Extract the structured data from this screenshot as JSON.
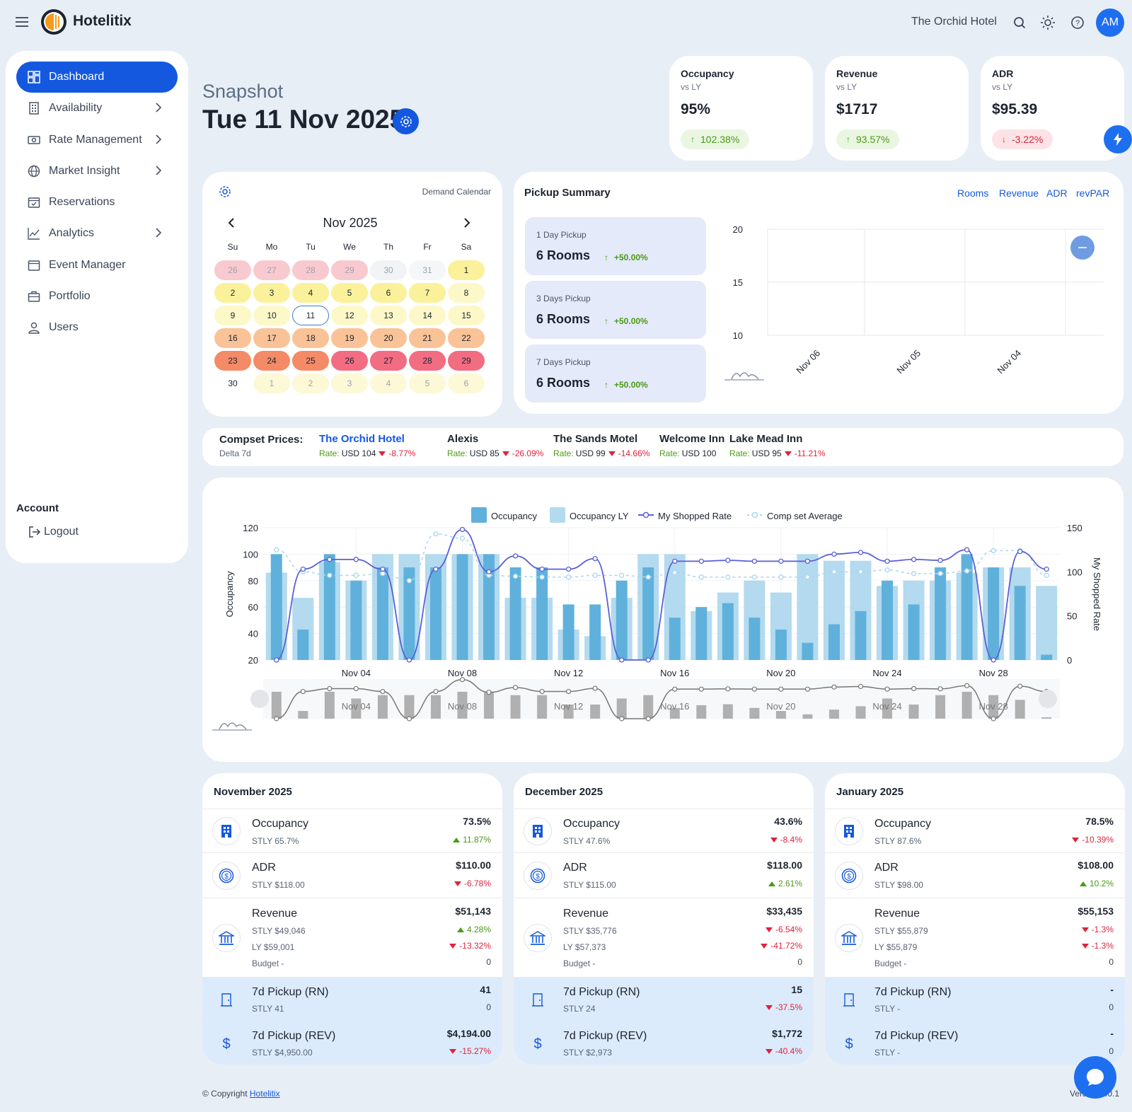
{
  "app": {
    "name": "Hotelitix",
    "hotel": "The Orchid Hotel",
    "avatar": "AM"
  },
  "sidebar": {
    "items": [
      {
        "label": "Dashboard",
        "icon": "dashboard-icon",
        "active": true
      },
      {
        "label": "Availability",
        "icon": "building-icon",
        "chevron": true
      },
      {
        "label": "Rate Management",
        "icon": "money-icon",
        "chevron": true
      },
      {
        "label": "Market Insight",
        "icon": "globe-icon",
        "chevron": true
      },
      {
        "label": "Reservations",
        "icon": "calendar-check-icon"
      },
      {
        "label": "Analytics",
        "icon": "chart-line-icon",
        "chevron": true
      },
      {
        "label": "Event Manager",
        "icon": "calendar-icon"
      },
      {
        "label": "Portfolio",
        "icon": "briefcase-icon"
      },
      {
        "label": "Users",
        "icon": "user-icon"
      }
    ],
    "account_label": "Account",
    "logout_label": "Logout"
  },
  "header": {
    "snapshot": "Snapshot",
    "date": "Tue 11 Nov 2025"
  },
  "kpis": [
    {
      "title": "Occupancy",
      "sub": "vs LY",
      "value": "95%",
      "change": "102.38%",
      "dir": "up"
    },
    {
      "title": "Revenue",
      "sub": "vs LY",
      "value": "$1717",
      "change": "93.57%",
      "dir": "up"
    },
    {
      "title": "ADR",
      "sub": "vs LY",
      "value": "$95.39",
      "change": "-3.22%",
      "dir": "down"
    }
  ],
  "calendar": {
    "label": "Demand Calendar",
    "month": "Nov 2025",
    "weekdays": [
      "Su",
      "Mo",
      "Tu",
      "We",
      "Th",
      "Fr",
      "Sa"
    ],
    "today": "11",
    "days": [
      {
        "d": "26",
        "c": "#f9c9d0",
        "m": true
      },
      {
        "d": "27",
        "c": "#f9c9d0",
        "m": true
      },
      {
        "d": "28",
        "c": "#f9c9d0",
        "m": true
      },
      {
        "d": "29",
        "c": "#f9c9d0",
        "m": true
      },
      {
        "d": "30",
        "c": "#f1f3f6",
        "m": true
      },
      {
        "d": "31",
        "c": "#f5f6f8",
        "m": true
      },
      {
        "d": "1",
        "c": "#fbf19a"
      },
      {
        "d": "2",
        "c": "#fbf19a"
      },
      {
        "d": "3",
        "c": "#fbf19a"
      },
      {
        "d": "4",
        "c": "#fbf19a"
      },
      {
        "d": "5",
        "c": "#fbf19a"
      },
      {
        "d": "6",
        "c": "#fbf19a"
      },
      {
        "d": "7",
        "c": "#fbf19a"
      },
      {
        "d": "8",
        "c": "#fdf8c8"
      },
      {
        "d": "9",
        "c": "#fdf8c8"
      },
      {
        "d": "10",
        "c": "#fdf8c8"
      },
      {
        "d": "11",
        "c": "#fdf8c8"
      },
      {
        "d": "12",
        "c": "#fdf8c8"
      },
      {
        "d": "13",
        "c": "#fdf8c8"
      },
      {
        "d": "14",
        "c": "#fdf8c8"
      },
      {
        "d": "15",
        "c": "#fdf8c8"
      },
      {
        "d": "16",
        "c": "#f9c397"
      },
      {
        "d": "17",
        "c": "#f9c397"
      },
      {
        "d": "18",
        "c": "#f9c397"
      },
      {
        "d": "19",
        "c": "#f9c397"
      },
      {
        "d": "20",
        "c": "#f9c397"
      },
      {
        "d": "21",
        "c": "#f9c397"
      },
      {
        "d": "22",
        "c": "#f9c397"
      },
      {
        "d": "23",
        "c": "#f48a66"
      },
      {
        "d": "24",
        "c": "#f48a66"
      },
      {
        "d": "25",
        "c": "#f48a66"
      },
      {
        "d": "26",
        "c": "#f26c82"
      },
      {
        "d": "27",
        "c": "#f26c82"
      },
      {
        "d": "28",
        "c": "#f26c82"
      },
      {
        "d": "29",
        "c": "#f26c82"
      },
      {
        "d": "30",
        "c": "#ffffff"
      },
      {
        "d": "1",
        "c": "#fdf8d6",
        "m": true
      },
      {
        "d": "2",
        "c": "#fdf8d6",
        "m": true
      },
      {
        "d": "3",
        "c": "#fdf8d6",
        "m": true
      },
      {
        "d": "4",
        "c": "#fdf8d6",
        "m": true
      },
      {
        "d": "5",
        "c": "#fdf8d6",
        "m": true
      },
      {
        "d": "6",
        "c": "#fdf8d6",
        "m": true
      }
    ]
  },
  "pickup": {
    "title": "Pickup Summary",
    "tabs": [
      "Rooms",
      "Revenue",
      "ADR",
      "revPAR"
    ],
    "boxes": [
      {
        "label": "1 Day Pickup",
        "value": "6 Rooms",
        "pct": "+50.00%"
      },
      {
        "label": "3 Days Pickup",
        "value": "6 Rooms",
        "pct": "+50.00%"
      },
      {
        "label": "7 Days Pickup",
        "value": "6 Rooms",
        "pct": "+50.00%"
      }
    ]
  },
  "pickup_chart": {
    "type": "scatter",
    "x": [
      "Nov 06",
      "Nov 05",
      "Nov 04"
    ],
    "y_ticks": [
      "20",
      "15",
      "10"
    ],
    "ylim": [
      10,
      20
    ]
  },
  "compset": {
    "title": "Compset Prices:",
    "sub": "Delta 7d",
    "hotels": [
      {
        "name": "The Orchid Hotel",
        "rate": "USD 104",
        "delta": "-8.77%",
        "own": true
      },
      {
        "name": "Alexis",
        "rate": "USD 85",
        "delta": "-26.09%"
      },
      {
        "name": "The Sands Motel",
        "rate": "USD 99",
        "delta": "-14.66%"
      },
      {
        "name": "Welcome Inn",
        "rate": "USD 100",
        "delta": ""
      },
      {
        "name": "Lake Mead Inn",
        "rate": "USD 95",
        "delta": "-11.21%"
      }
    ],
    "rate_label": "Rate:"
  },
  "chart_data": {
    "type": "bar",
    "legend": [
      "Occupancy",
      "Occupancy LY",
      "My Shopped Rate",
      "Comp set Average"
    ],
    "ylabel": "Occupancy",
    "y2label": "My Shopped Rate",
    "ylim": [
      20,
      120
    ],
    "y2lim": [
      0,
      150
    ],
    "y_ticks": [
      "120",
      "100",
      "80",
      "60",
      "40",
      "20"
    ],
    "y2_ticks": [
      "150",
      "100",
      "50",
      "0"
    ],
    "x_labels": [
      "Nov 04",
      "Nov 08",
      "Nov 12",
      "Nov 16",
      "Nov 20",
      "Nov 24",
      "Nov 28"
    ],
    "categories": [
      "Nov 01",
      "Nov 02",
      "Nov 03",
      "Nov 04",
      "Nov 05",
      "Nov 06",
      "Nov 07",
      "Nov 08",
      "Nov 09",
      "Nov 10",
      "Nov 11",
      "Nov 12",
      "Nov 13",
      "Nov 14",
      "Nov 15",
      "Nov 16",
      "Nov 17",
      "Nov 18",
      "Nov 19",
      "Nov 20",
      "Nov 21",
      "Nov 22",
      "Nov 23",
      "Nov 24",
      "Nov 25",
      "Nov 26",
      "Nov 27",
      "Nov 28",
      "Nov 29",
      "Nov 30"
    ],
    "series": [
      {
        "name": "Occupancy",
        "values": [
          100,
          43,
          100,
          80,
          90,
          90,
          90,
          100,
          100,
          90,
          90,
          62,
          62,
          80,
          90,
          52,
          60,
          63,
          52,
          43,
          33,
          47,
          57,
          80,
          62,
          90,
          100,
          90,
          76,
          24
        ]
      },
      {
        "name": "Occupancy LY",
        "values": [
          86,
          67,
          94,
          80,
          100,
          100,
          100,
          100,
          100,
          67,
          67,
          43,
          38,
          67,
          100,
          100,
          57,
          71,
          80,
          71,
          100,
          95,
          95,
          76,
          80,
          80,
          86,
          90,
          90,
          76
        ]
      },
      {
        "name": "My Shopped Rate",
        "values": [
          0,
          103,
          114,
          114,
          103,
          0,
          103,
          148,
          100,
          118,
          103,
          103,
          115,
          0,
          0,
          112,
          112,
          113,
          112,
          112,
          112,
          120,
          122,
          112,
          114,
          113,
          125,
          0,
          123,
          103
        ]
      },
      {
        "name": "Comp set Average",
        "values": [
          125,
          100,
          96,
          96,
          98,
          90,
          143,
          138,
          96,
          95,
          94,
          94,
          96,
          96,
          94,
          99,
          94,
          94,
          94,
          94,
          94,
          100,
          100,
          102,
          98,
          98,
          101,
          124,
          124,
          96
        ]
      }
    ]
  },
  "months": [
    {
      "title": "November 2025",
      "occ": {
        "label": "Occupancy",
        "stly": "STLY 65.7%",
        "value": "73.5%",
        "chg": "11.87%",
        "dir": "up"
      },
      "adr": {
        "label": "ADR",
        "stly": "STLY $118.00",
        "value": "$110.00",
        "chg": "-6.78%",
        "dir": "down"
      },
      "rev": {
        "label": "Revenue",
        "stly": "STLY $49,046",
        "ly": "LY $59,001",
        "budget": "Budget -",
        "value": "$51,143",
        "chg1": "4.28%",
        "dir1": "up",
        "chg2": "-13.32%",
        "dir2": "down",
        "chg3": "0"
      },
      "prn": {
        "label": "7d Pickup (RN)",
        "stly": "STLY 41",
        "value": "41",
        "chg": "0",
        "dir": "neu"
      },
      "prev": {
        "label": "7d Pickup (REV)",
        "stly": "STLY $4,950.00",
        "value": "$4,194.00",
        "chg": "-15.27%",
        "dir": "down"
      }
    },
    {
      "title": "December 2025",
      "occ": {
        "label": "Occupancy",
        "stly": "STLY 47.6%",
        "value": "43.6%",
        "chg": "-8.4%",
        "dir": "down"
      },
      "adr": {
        "label": "ADR",
        "stly": "STLY $115.00",
        "value": "$118.00",
        "chg": "2.61%",
        "dir": "up"
      },
      "rev": {
        "label": "Revenue",
        "stly": "STLY $35,776",
        "ly": "LY $57,373",
        "budget": "Budget -",
        "value": "$33,435",
        "chg1": "-6.54%",
        "dir1": "down",
        "chg2": "-41.72%",
        "dir2": "down",
        "chg3": "0"
      },
      "prn": {
        "label": "7d Pickup (RN)",
        "stly": "STLY 24",
        "value": "15",
        "chg": "-37.5%",
        "dir": "down"
      },
      "prev": {
        "label": "7d Pickup (REV)",
        "stly": "STLY $2,973",
        "value": "$1,772",
        "chg": "-40.4%",
        "dir": "down"
      }
    },
    {
      "title": "January 2025",
      "occ": {
        "label": "Occupancy",
        "stly": "STLY 87.6%",
        "value": "78.5%",
        "chg": "-10.39%",
        "dir": "down"
      },
      "adr": {
        "label": "ADR",
        "stly": "STLY $98.00",
        "value": "$108.00",
        "chg": "10.2%",
        "dir": "up"
      },
      "rev": {
        "label": "Revenue",
        "stly": "STLY $55,879",
        "ly": "LY $55,879",
        "budget": "Budget -",
        "value": "$55,153",
        "chg1": "-1.3%",
        "dir1": "down",
        "chg2": "-1.3%",
        "dir2": "down",
        "chg3": "0"
      },
      "prn": {
        "label": "7d Pickup (RN)",
        "stly": "STLY -",
        "value": "-",
        "chg": "0",
        "dir": "neu"
      },
      "prev": {
        "label": "7d Pickup (REV)",
        "stly": "STLY -",
        "value": "-",
        "chg": "0",
        "dir": "neu"
      }
    }
  ],
  "footer": {
    "copyright": "© Copyright",
    "link": "Hotelitix",
    "version": "Version 2.0.1"
  },
  "colors": {
    "accent": "#1458e0",
    "occ": "#5fb1dc",
    "occ_ly": "#b3daee",
    "rate": "#5b5fd6",
    "comp": "#a9d6ee"
  }
}
